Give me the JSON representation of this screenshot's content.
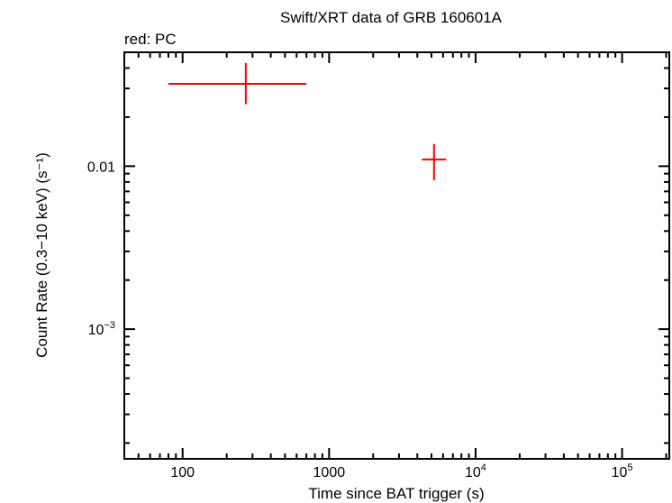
{
  "chart_data": {
    "type": "scatter",
    "title": "Swift/XRT data of GRB 160601A",
    "subtitle": "red: PC",
    "xlabel": "Time since BAT trigger (s)",
    "ylabel": "Count Rate (0.3−10 keV) (s⁻¹)",
    "xscale": "log",
    "yscale": "log",
    "xlim": [
      40,
      210000
    ],
    "ylim": [
      0.00016,
      0.05
    ],
    "x_ticks": [
      {
        "value": 100,
        "label": "100"
      },
      {
        "value": 1000,
        "label": "1000"
      },
      {
        "value": 10000,
        "label": "10",
        "sup": "4"
      },
      {
        "value": 100000,
        "label": "10",
        "sup": "5"
      }
    ],
    "y_ticks": [
      {
        "value": 0.01,
        "label": "0.01"
      },
      {
        "value": 0.001,
        "label": "10",
        "sup": "−3"
      }
    ],
    "series": [
      {
        "name": "PC",
        "color": "#ff0000",
        "points": [
          {
            "x": 270,
            "x_lo": 80,
            "x_hi": 700,
            "y": 0.032,
            "y_lo": 0.024,
            "y_hi": 0.043
          },
          {
            "x": 5200,
            "x_lo": 4300,
            "x_hi": 6300,
            "y": 0.011,
            "y_lo": 0.0082,
            "y_hi": 0.0137
          }
        ]
      }
    ]
  }
}
